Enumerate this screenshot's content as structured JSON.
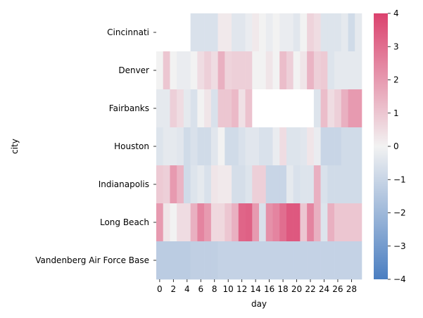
{
  "chart_data": {
    "type": "heatmap",
    "xlabel": "day",
    "ylabel": "city",
    "x": [
      0,
      1,
      2,
      3,
      4,
      5,
      6,
      7,
      8,
      9,
      10,
      11,
      12,
      13,
      14,
      15,
      16,
      17,
      18,
      19,
      20,
      21,
      22,
      23,
      24,
      25,
      26,
      27,
      28,
      29
    ],
    "x_tick_labels": [
      "0",
      "2",
      "4",
      "6",
      "8",
      "10",
      "12",
      "14",
      "16",
      "18",
      "20",
      "22",
      "24",
      "26",
      "28"
    ],
    "rows": [
      "Cincinnati",
      "Denver",
      "Fairbanks",
      "Houston",
      "Indianapolis",
      "Long Beach",
      "Vandenberg Air Force Base"
    ],
    "values": [
      [
        null,
        null,
        null,
        null,
        null,
        -0.6,
        -0.6,
        -0.6,
        -0.6,
        0.2,
        0.2,
        -0.4,
        -0.4,
        -0.2,
        0.2,
        0.0,
        -0.2,
        0.0,
        -0.2,
        -0.2,
        -0.4,
        0.0,
        0.7,
        0.5,
        -0.5,
        -0.5,
        -0.5,
        -0.3,
        -0.8,
        -0.3
      ],
      [
        0.0,
        1.0,
        0.0,
        -0.2,
        -0.2,
        0.0,
        0.5,
        0.8,
        0.5,
        1.5,
        0.7,
        0.8,
        0.8,
        0.8,
        0.0,
        0.0,
        0.3,
        0.0,
        1.2,
        0.8,
        0.0,
        0.3,
        1.4,
        0.8,
        0.9,
        -0.5,
        -0.3,
        -0.3,
        -0.3,
        -0.3
      ],
      [
        -0.3,
        -0.3,
        0.8,
        0.5,
        -0.3,
        -0.6,
        0.0,
        0.3,
        -0.6,
        1.0,
        1.0,
        1.3,
        0.4,
        1.1,
        null,
        null,
        null,
        null,
        null,
        null,
        null,
        null,
        null,
        -0.5,
        1.2,
        0.5,
        0.8,
        1.5,
        2.0,
        2.0
      ],
      [
        -0.5,
        -0.3,
        -0.3,
        -0.4,
        -0.8,
        -0.6,
        -0.8,
        -0.8,
        -0.4,
        0.0,
        -0.8,
        -0.8,
        -0.6,
        -0.4,
        -0.4,
        -0.6,
        -0.6,
        -0.2,
        0.5,
        -0.5,
        -0.5,
        -0.4,
        0.3,
        -0.2,
        -1.0,
        -1.0,
        -1.0,
        -0.8,
        -0.8,
        -0.8
      ],
      [
        0.9,
        0.8,
        2.0,
        1.4,
        -0.8,
        -0.5,
        -0.3,
        -0.6,
        0.3,
        0.2,
        0.2,
        -0.7,
        -0.7,
        -0.5,
        0.8,
        0.8,
        -1.0,
        -1.0,
        -1.0,
        -0.3,
        -0.6,
        -0.5,
        -0.5,
        1.5,
        -0.6,
        -0.8,
        -0.8,
        -0.8,
        -0.8,
        -0.8
      ],
      [
        2.0,
        0.3,
        0.0,
        0.5,
        0.5,
        1.5,
        2.5,
        2.0,
        0.6,
        0.6,
        1.0,
        1.5,
        3.2,
        3.3,
        2.0,
        -0.6,
        2.2,
        2.5,
        3.0,
        3.5,
        3.5,
        1.0,
        2.5,
        1.5,
        -0.5,
        1.5,
        1.0,
        1.0,
        1.0,
        1.0
      ],
      [
        -1.3,
        -1.3,
        -1.3,
        -1.3,
        -1.3,
        -1.2,
        -1.2,
        -1.2,
        -1.2,
        -1.1,
        -1.1,
        -1.1,
        -1.1,
        -1.1,
        -1.1,
        -1.1,
        -1.1,
        -1.1,
        -1.1,
        -1.1,
        -1.1,
        -1.1,
        -1.1,
        -1.1,
        -1.1,
        -1.1,
        -1.1,
        -1.1,
        -1.1,
        -1.1
      ]
    ],
    "colorbar": {
      "min": -4,
      "max": 4,
      "ticks": [
        "-4",
        "-3",
        "-2",
        "-1",
        "0",
        "1",
        "2",
        "3",
        "4"
      ],
      "low_color": "#4a7ec1",
      "mid_color": "#f2f2f2",
      "high_color": "#db426e"
    },
    "missing_color": "#ffffff",
    "legend": "right"
  }
}
